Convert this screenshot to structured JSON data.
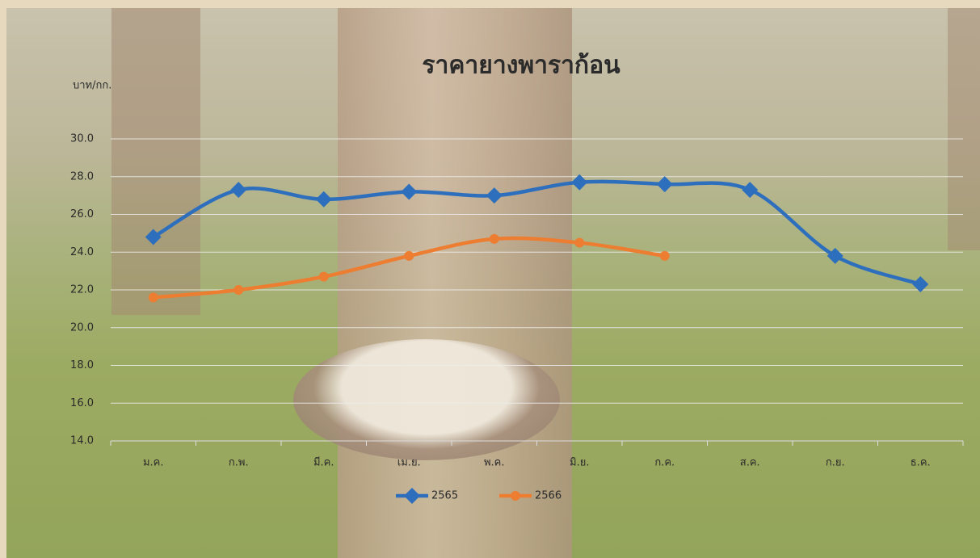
{
  "chart_data": {
    "type": "line",
    "title": "ราคายางพาราก้อน",
    "y_label": "บาท/กก.",
    "categories": [
      "ม.ค.",
      "ก.พ.",
      "มี.ค.",
      "เม.ย.",
      "พ.ค.",
      "มิ.ย.",
      "ก.ค.",
      "ส.ค.",
      "ก.ย.",
      "ธ.ค."
    ],
    "series": [
      {
        "name": "2565",
        "color": "#2e6fbd",
        "marker": "diamond",
        "values": [
          24.8,
          27.3,
          26.8,
          27.2,
          27.0,
          27.7,
          27.6,
          27.3,
          23.8,
          22.3
        ]
      },
      {
        "name": "2566",
        "color": "#ed7d31",
        "marker": "circle",
        "values": [
          21.6,
          22.0,
          22.7,
          23.8,
          24.7,
          24.5,
          23.8,
          null,
          null,
          null
        ]
      }
    ],
    "ylim": [
      14,
      30
    ],
    "yticks": [
      {
        "value": 14,
        "label": "14.0"
      },
      {
        "value": 16,
        "label": "16.0"
      },
      {
        "value": 18,
        "label": "18.0"
      },
      {
        "value": 20,
        "label": "20.0"
      },
      {
        "value": 22,
        "label": "22.0"
      },
      {
        "value": 24,
        "label": "24.0"
      },
      {
        "value": 26,
        "label": "26.0"
      },
      {
        "value": 28,
        "label": "28.0"
      },
      {
        "value": 30,
        "label": "30.0"
      }
    ],
    "grid": true,
    "legend": "bottom"
  }
}
